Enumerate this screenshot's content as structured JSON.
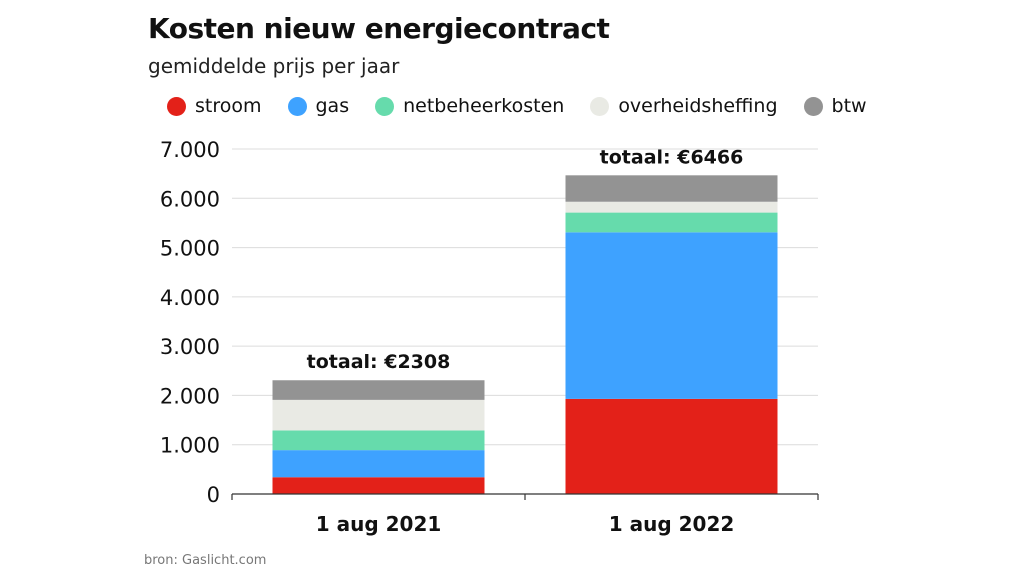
{
  "header": {
    "title": "Kosten nieuw energiecontract",
    "subtitle": "gemiddelde prijs per jaar"
  },
  "source": "bron: Gaslicht.com",
  "chart_data": {
    "type": "bar",
    "stacked": true,
    "title": "Kosten nieuw energiecontract",
    "subtitle": "gemiddelde prijs per jaar",
    "categories": [
      "1 aug 2021",
      "1 aug 2022"
    ],
    "series": [
      {
        "name": "stroom",
        "color": "#e32119",
        "values": [
          340,
          1930
        ]
      },
      {
        "name": "gas",
        "color": "#3ea2ff",
        "values": [
          550,
          3380
        ]
      },
      {
        "name": "netbeheerkosten",
        "color": "#66dbac",
        "values": [
          400,
          400
        ]
      },
      {
        "name": "overheidsheffing",
        "color": "#e9eae4",
        "values": [
          620,
          220
        ]
      },
      {
        "name": "btw",
        "color": "#939393",
        "values": [
          398,
          536
        ]
      }
    ],
    "totals": [
      "totaal: €2308",
      "totaal: €6466"
    ],
    "yticks": [
      0,
      1000,
      2000,
      3000,
      4000,
      5000,
      6000,
      7000
    ],
    "ytick_labels": [
      "0",
      "1.000",
      "2.000",
      "3.000",
      "4.000",
      "5.000",
      "6.000",
      "7.000"
    ],
    "ylim": [
      0,
      7000
    ],
    "grid": true,
    "legend_position": "top"
  }
}
